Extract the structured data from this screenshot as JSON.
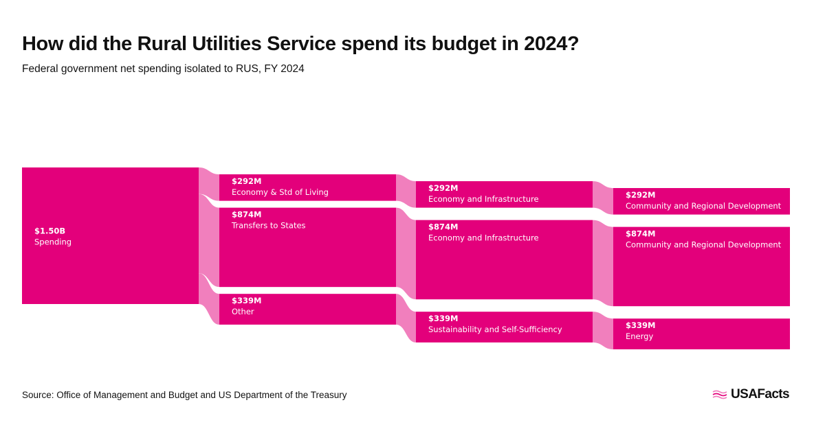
{
  "header": {
    "title": "How did the Rural Utilities Service spend its budget in 2024?",
    "subtitle": "Federal government net spending isolated to RUS, FY 2024"
  },
  "footer": {
    "source": "Source: Office of Management and Budget and US Department of the Treasury",
    "brand": "USAFacts"
  },
  "colors": {
    "node": "#e3007b",
    "link": "#f17fbd",
    "text_on_node": "#ffffff"
  },
  "chart_data": {
    "type": "sankey",
    "title": "How did the Rural Utilities Service spend its budget in 2024?",
    "subtitle": "Federal government net spending isolated to RUS, FY 2024",
    "unit": "USD",
    "nodes": [
      {
        "id": "spending",
        "column": 0,
        "value": 1505,
        "value_label": "$1.50B",
        "label": "Spending"
      },
      {
        "id": "c1_econ",
        "column": 1,
        "value": 292,
        "value_label": "$292M",
        "label": "Economy & Std of Living"
      },
      {
        "id": "c1_transfers",
        "column": 1,
        "value": 874,
        "value_label": "$874M",
        "label": "Transfers to States"
      },
      {
        "id": "c1_other",
        "column": 1,
        "value": 339,
        "value_label": "$339M",
        "label": "Other"
      },
      {
        "id": "c2_econ_a",
        "column": 2,
        "value": 292,
        "value_label": "$292M",
        "label": "Economy and Infrastructure"
      },
      {
        "id": "c2_econ_b",
        "column": 2,
        "value": 874,
        "value_label": "$874M",
        "label": "Economy and Infrastructure"
      },
      {
        "id": "c2_sust",
        "column": 2,
        "value": 339,
        "value_label": "$339M",
        "label": "Sustainability and Self-Sufficiency"
      },
      {
        "id": "c3_comm_a",
        "column": 3,
        "value": 292,
        "value_label": "$292M",
        "label": "Community and Regional Development"
      },
      {
        "id": "c3_comm_b",
        "column": 3,
        "value": 874,
        "value_label": "$874M",
        "label": "Community and Regional Development"
      },
      {
        "id": "c3_energy",
        "column": 3,
        "value": 339,
        "value_label": "$339M",
        "label": "Energy"
      }
    ],
    "links": [
      {
        "source": "spending",
        "target": "c1_econ",
        "value": 292
      },
      {
        "source": "spending",
        "target": "c1_transfers",
        "value": 874
      },
      {
        "source": "spending",
        "target": "c1_other",
        "value": 339
      },
      {
        "source": "c1_econ",
        "target": "c2_econ_a",
        "value": 292
      },
      {
        "source": "c1_transfers",
        "target": "c2_econ_b",
        "value": 874
      },
      {
        "source": "c1_other",
        "target": "c2_sust",
        "value": 339
      },
      {
        "source": "c2_econ_a",
        "target": "c3_comm_a",
        "value": 292
      },
      {
        "source": "c2_econ_b",
        "target": "c3_comm_b",
        "value": 874
      },
      {
        "source": "c2_sust",
        "target": "c3_energy",
        "value": 339
      }
    ]
  }
}
